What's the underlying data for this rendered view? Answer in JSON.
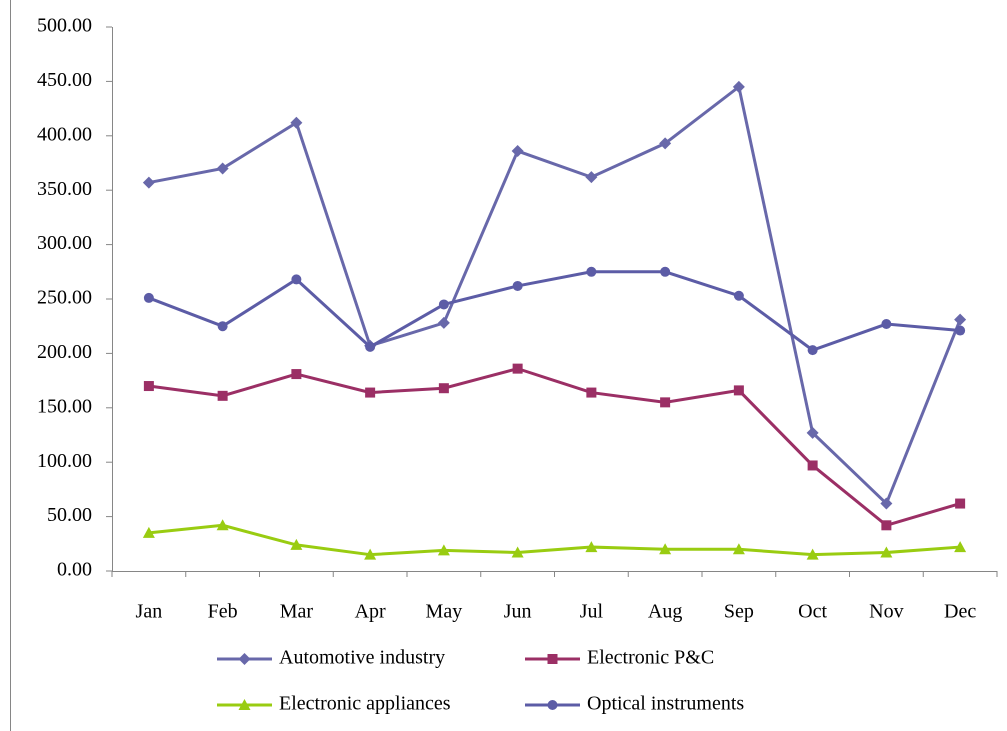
{
  "chart_data": {
    "type": "line",
    "categories": [
      "Jan",
      "Feb",
      "Mar",
      "Apr",
      "May",
      "Jun",
      "Jul",
      "Aug",
      "Sep",
      "Oct",
      "Nov",
      "Dec"
    ],
    "series": [
      {
        "name": "Automotive industry",
        "color": "#6868aa",
        "marker": "diamond",
        "values": [
          357,
          370,
          412,
          207,
          228,
          386,
          362,
          393,
          445,
          127,
          62,
          231
        ]
      },
      {
        "name": "Electronic P&C",
        "color": "#9b2f65",
        "marker": "square",
        "values": [
          170,
          161,
          181,
          164,
          168,
          186,
          164,
          155,
          166,
          97,
          42,
          62
        ]
      },
      {
        "name": "Electronic appliances",
        "color": "#99cc11",
        "marker": "triangle",
        "values": [
          35,
          42,
          24,
          15,
          19,
          17,
          22,
          20,
          20,
          15,
          17,
          22
        ]
      },
      {
        "name": "Optical instruments",
        "color": "#5c5ca6",
        "marker": "circle",
        "values": [
          251,
          225,
          268,
          206,
          245,
          262,
          275,
          275,
          253,
          203,
          227,
          221
        ]
      }
    ],
    "ylim": [
      0,
      500
    ],
    "yticks": [
      {
        "value": 0,
        "label": "0.00"
      },
      {
        "value": 50,
        "label": "50.00"
      },
      {
        "value": 100,
        "label": "100.00"
      },
      {
        "value": 150,
        "label": "150.00"
      },
      {
        "value": 200,
        "label": "200.00"
      },
      {
        "value": 250,
        "label": "250.00"
      },
      {
        "value": 300,
        "label": "300.00"
      },
      {
        "value": 350,
        "label": "350.00"
      },
      {
        "value": 400,
        "label": "400.00"
      },
      {
        "value": 450,
        "label": "450.00"
      },
      {
        "value": 500,
        "label": "500.00"
      }
    ],
    "grid": false,
    "legend": "bottom"
  }
}
